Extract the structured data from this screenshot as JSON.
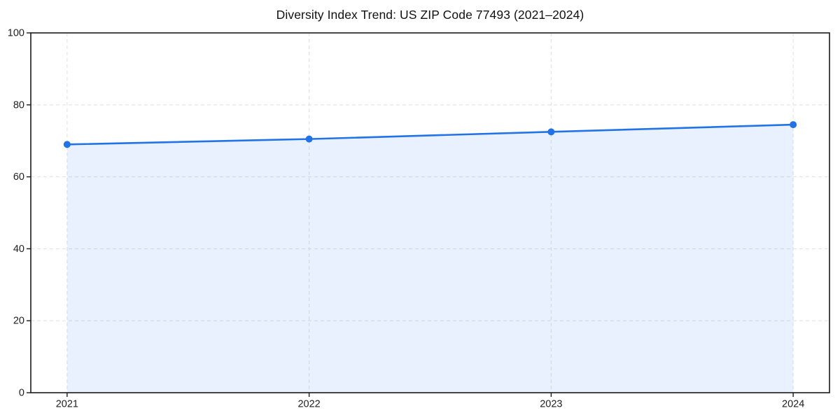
{
  "page": {
    "background": "#ffffff"
  },
  "chart_data": {
    "type": "line",
    "title": "Diversity Index Trend: US ZIP Code 77493 (2021–2024)",
    "x": [
      2021,
      2022,
      2023,
      2024
    ],
    "series": [
      {
        "name": "Diversity Index",
        "values": [
          69,
          70.5,
          72.5,
          74.5
        ],
        "color": "#2273e8",
        "marker": "circle",
        "area_fill": true,
        "fill_opacity": 0.1
      }
    ],
    "xlabel": "",
    "ylabel": "",
    "ylim": [
      0,
      100
    ],
    "yticks": [
      0,
      20,
      40,
      60,
      80,
      100
    ],
    "xticks": [
      2021,
      2022,
      2023,
      2024
    ],
    "grid": "both",
    "grid_style": "dashed",
    "grid_color": "#e3e3e3",
    "spine_color": "#1a1a1a",
    "tick_label_color": "#1f1f1f",
    "legend": "none"
  }
}
